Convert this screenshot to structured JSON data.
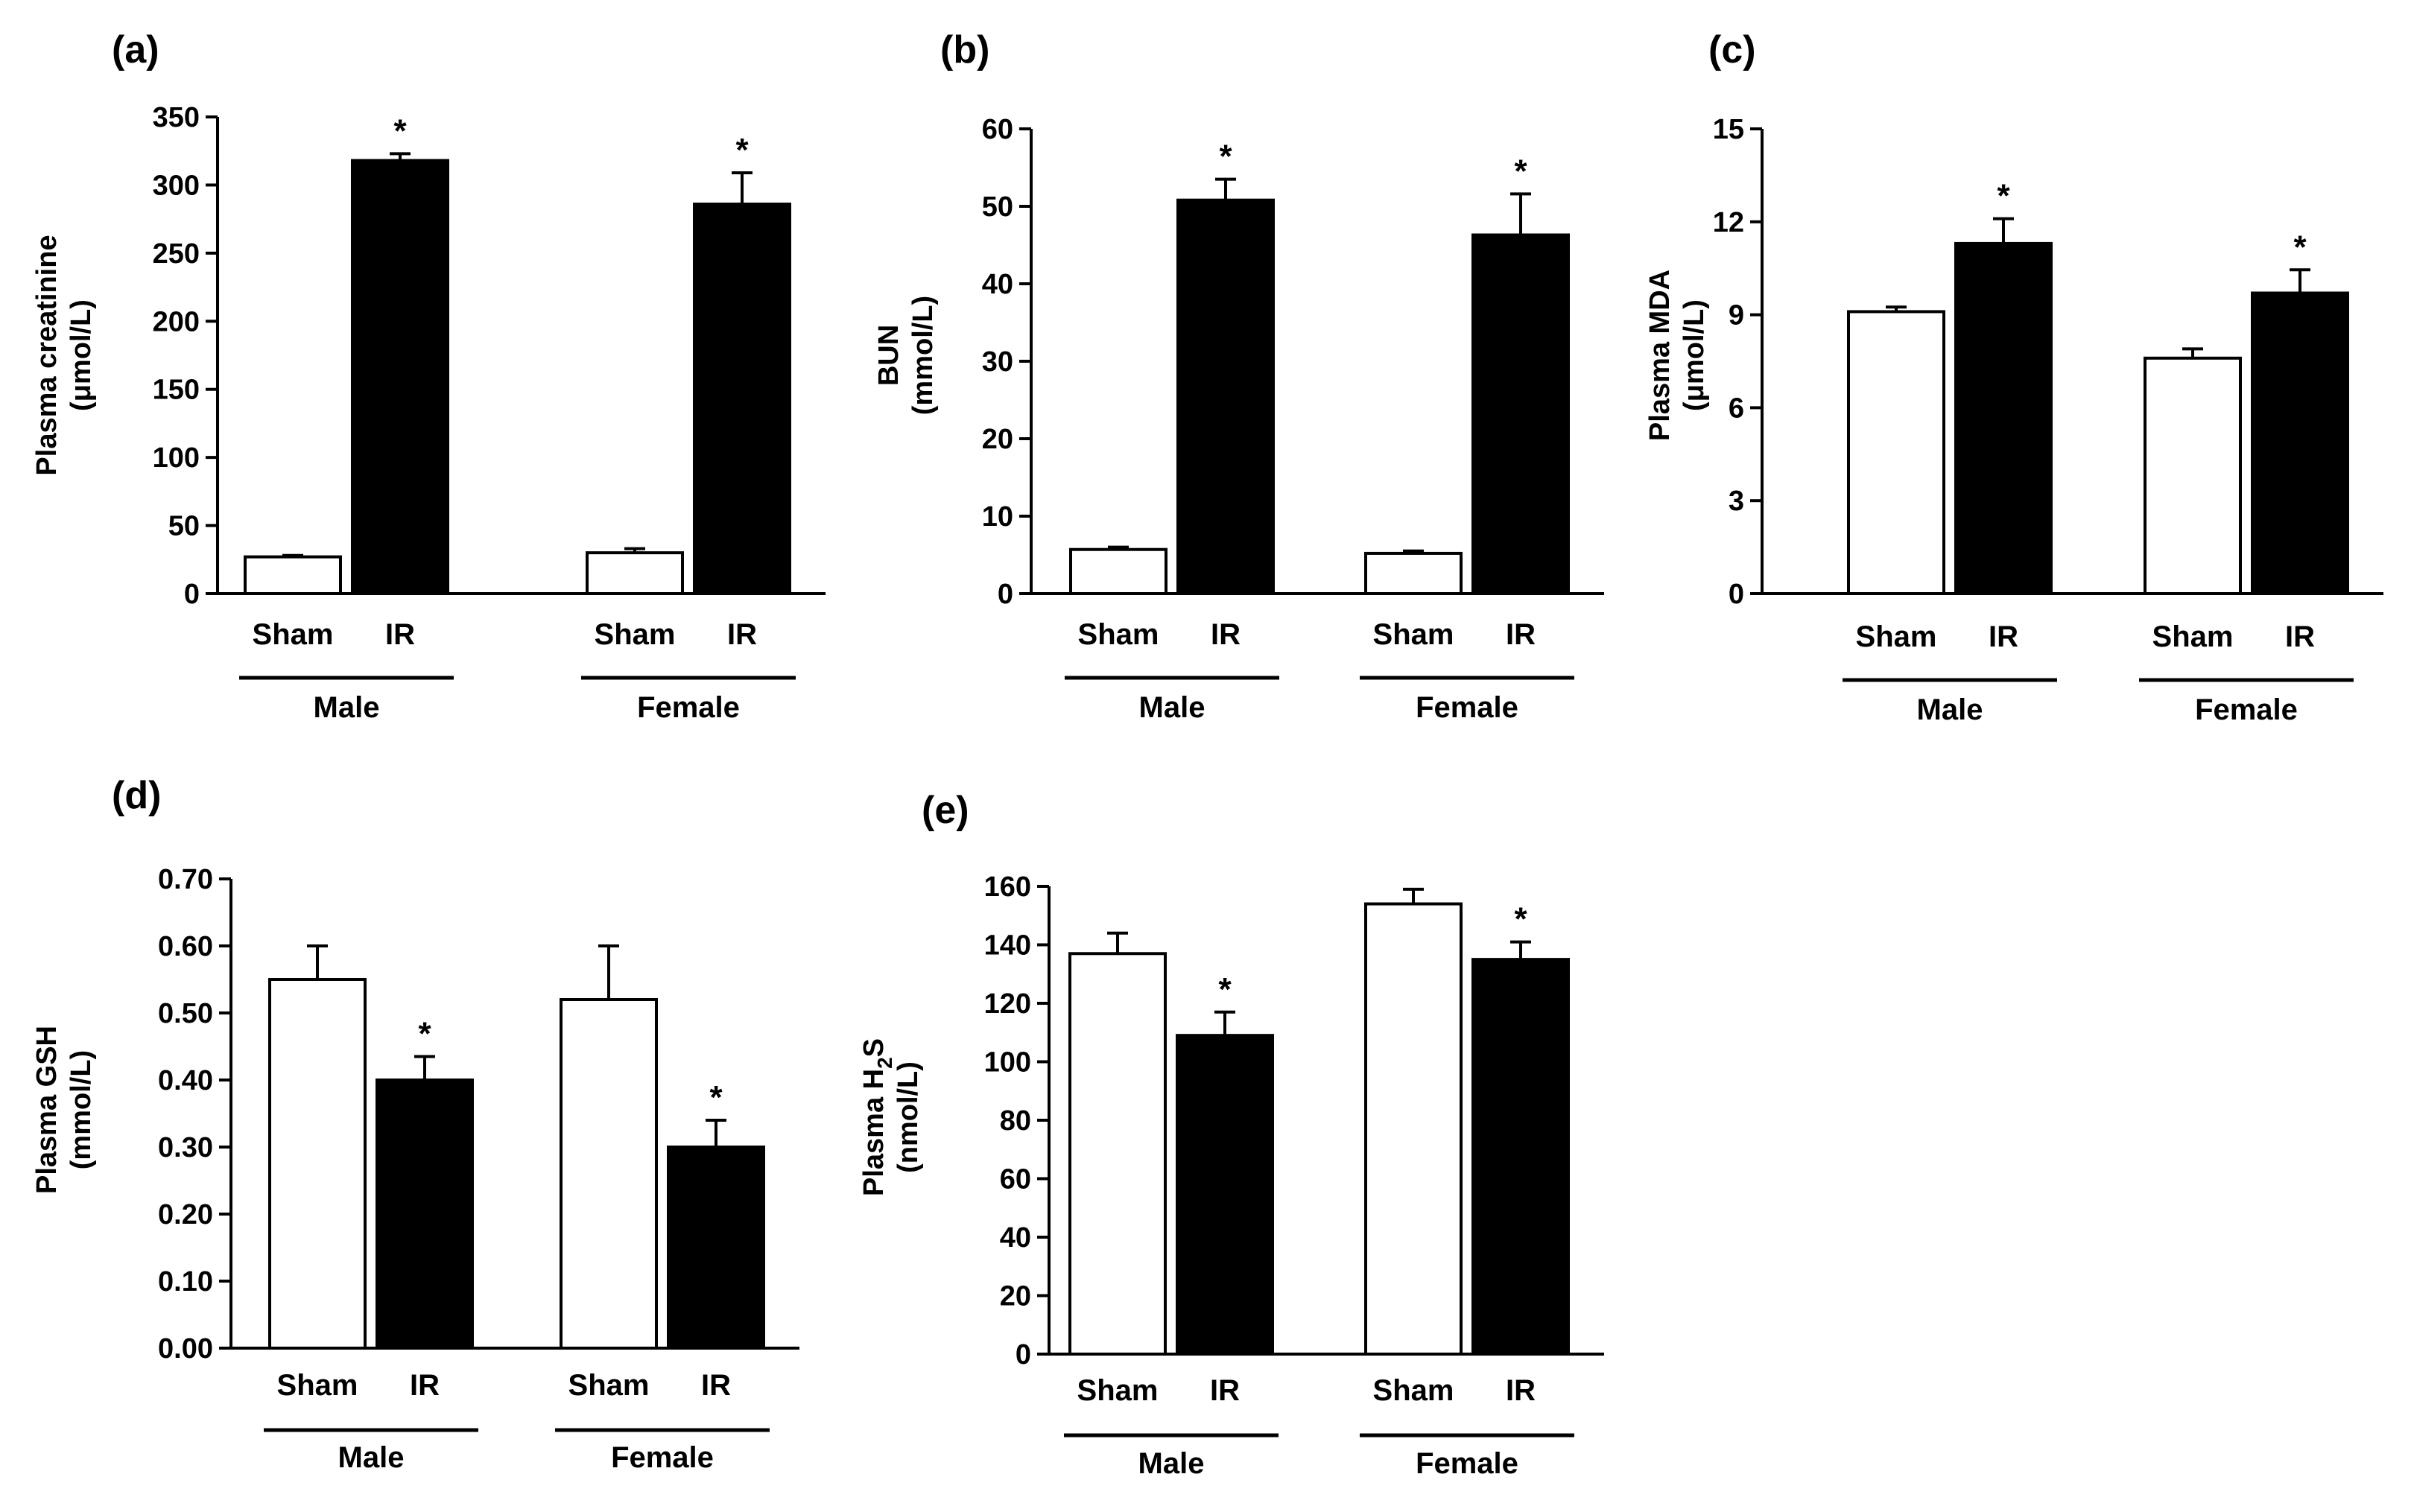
{
  "chart_data": [
    {
      "type": "bar",
      "panel": "(a)",
      "ylabel": "Plasma creatinine",
      "ylabel_unit": "(μmol/L)",
      "ylim": [
        0,
        350
      ],
      "yticks": [
        "0",
        "50",
        "100",
        "150",
        "200",
        "250",
        "300",
        "350"
      ],
      "groups": [
        "Male",
        "Female"
      ],
      "conditions": [
        "Sham",
        "IR"
      ],
      "values": [
        [
          27,
          318
        ],
        [
          30,
          286
        ]
      ],
      "errors": [
        [
          1,
          5
        ],
        [
          3,
          23
        ]
      ],
      "significance": [
        [
          "",
          "*"
        ],
        [
          "",
          "*"
        ]
      ],
      "colors": {
        "Sham": "#ffffff",
        "IR": "#000000"
      }
    },
    {
      "type": "bar",
      "panel": "(b)",
      "ylabel": "BUN",
      "ylabel_unit": "(mmol/L)",
      "ylim": [
        0,
        60
      ],
      "yticks": [
        "0",
        "10",
        "20",
        "30",
        "40",
        "50",
        "60"
      ],
      "groups": [
        "Male",
        "Female"
      ],
      "conditions": [
        "Sham",
        "IR"
      ],
      "values": [
        [
          5.7,
          50.8
        ],
        [
          5.2,
          46.3
        ]
      ],
      "errors": [
        [
          0.3,
          2.7
        ],
        [
          0.3,
          5.3
        ]
      ],
      "significance": [
        [
          "",
          "*"
        ],
        [
          "",
          "*"
        ]
      ],
      "colors": {
        "Sham": "#ffffff",
        "IR": "#000000"
      }
    },
    {
      "type": "bar",
      "panel": "(c)",
      "ylabel": "Plasma  MDA",
      "ylabel_unit": "(μmol/L)",
      "ylim": [
        0,
        15
      ],
      "yticks": [
        "0",
        "3",
        "6",
        "9",
        "12",
        "15"
      ],
      "groups": [
        "Male",
        "Female"
      ],
      "conditions": [
        "Sham",
        "IR"
      ],
      "values": [
        [
          9.1,
          11.3
        ],
        [
          7.6,
          9.7
        ]
      ],
      "errors": [
        [
          0.15,
          0.8
        ],
        [
          0.3,
          0.75
        ]
      ],
      "significance": [
        [
          "",
          "*"
        ],
        [
          "",
          "*"
        ]
      ],
      "colors": {
        "Sham": "#ffffff",
        "IR": "#000000"
      }
    },
    {
      "type": "bar",
      "panel": "(d)",
      "ylabel": "Plasma  GSH",
      "ylabel_unit": "(mmol/L)",
      "ylim": [
        0,
        0.7
      ],
      "yticks": [
        "0.00",
        "0.10",
        "0.20",
        "0.30",
        "0.40",
        "0.50",
        "0.60",
        "0.70"
      ],
      "groups": [
        "Male",
        "Female"
      ],
      "conditions": [
        "Sham",
        "IR"
      ],
      "values": [
        [
          0.55,
          0.4
        ],
        [
          0.52,
          0.3
        ]
      ],
      "errors": [
        [
          0.05,
          0.035
        ],
        [
          0.08,
          0.04
        ]
      ],
      "significance": [
        [
          "",
          "*"
        ],
        [
          "",
          "*"
        ]
      ],
      "colors": {
        "Sham": "#ffffff",
        "IR": "#000000"
      }
    },
    {
      "type": "bar",
      "panel": "(e)",
      "ylabel": "Plasma  H",
      "ylabel_sub": "2",
      "ylabel_tail": "S",
      "ylabel_unit": "(nmol/L)",
      "ylim": [
        0,
        160
      ],
      "yticks": [
        "0",
        "20",
        "40",
        "60",
        "80",
        "100",
        "120",
        "140",
        "160"
      ],
      "groups": [
        "Male",
        "Female"
      ],
      "conditions": [
        "Sham",
        "IR"
      ],
      "values": [
        [
          137,
          109
        ],
        [
          154,
          135
        ]
      ],
      "errors": [
        [
          7,
          8
        ],
        [
          5,
          6
        ]
      ],
      "significance": [
        [
          "",
          "*"
        ],
        [
          "",
          "*"
        ]
      ],
      "colors": {
        "Sham": "#ffffff",
        "IR": "#000000"
      }
    }
  ]
}
